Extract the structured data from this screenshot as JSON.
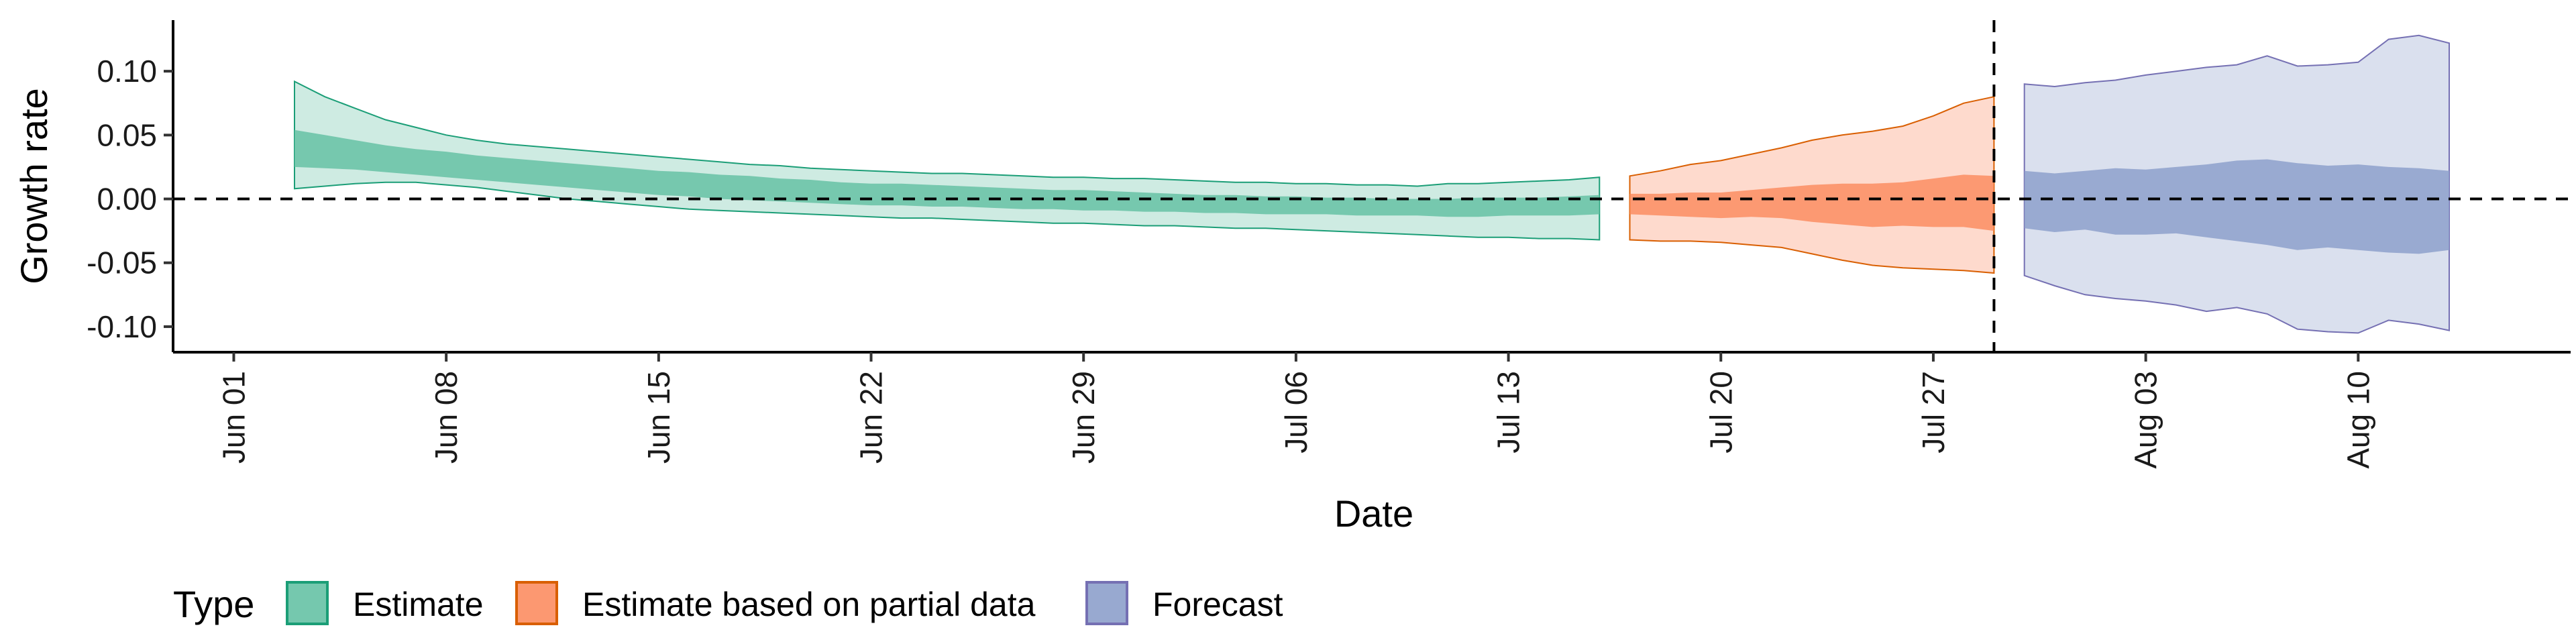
{
  "chart_data": {
    "type": "area",
    "xlabel": "Date",
    "ylabel": "Growth rate",
    "ylim": [
      -0.12,
      0.14
    ],
    "xlim": [
      "2020-05-30",
      "2020-08-17"
    ],
    "x_scale": "date",
    "y_ticks": [
      {
        "value": 0.1,
        "label": "0.10"
      },
      {
        "value": 0.05,
        "label": "0.05"
      },
      {
        "value": 0.0,
        "label": "0.00"
      },
      {
        "value": -0.05,
        "label": "-0.05"
      },
      {
        "value": -0.1,
        "label": "-0.10"
      }
    ],
    "x_ticks": [
      {
        "value": "2020-06-01",
        "label": "Jun 01"
      },
      {
        "value": "2020-06-08",
        "label": "Jun 08"
      },
      {
        "value": "2020-06-15",
        "label": "Jun 15"
      },
      {
        "value": "2020-06-22",
        "label": "Jun 22"
      },
      {
        "value": "2020-06-29",
        "label": "Jun 29"
      },
      {
        "value": "2020-07-06",
        "label": "Jul 06"
      },
      {
        "value": "2020-07-13",
        "label": "Jul 13"
      },
      {
        "value": "2020-07-20",
        "label": "Jul 20"
      },
      {
        "value": "2020-07-27",
        "label": "Jul 27"
      },
      {
        "value": "2020-08-03",
        "label": "Aug 03"
      },
      {
        "value": "2020-08-10",
        "label": "Aug 10"
      }
    ],
    "hline": {
      "y": 0,
      "style": "dashed"
    },
    "vline": {
      "x": "2020-07-29",
      "style": "dashed"
    },
    "grid": false,
    "legend": {
      "title": "Type",
      "position": "bottom-left",
      "items": [
        {
          "label": "Estimate",
          "fill": "#66c2a5",
          "stroke": "#1b9e77"
        },
        {
          "label": "Estimate based on partial data",
          "fill": "#fc8d62",
          "stroke": "#d95f02"
        },
        {
          "label": "Forecast",
          "fill": "#8da0cb",
          "stroke": "#7570b3"
        }
      ]
    },
    "series": [
      {
        "name": "Estimate",
        "fill": "#66c2a5",
        "stroke": "#1b9e77",
        "x": [
          "2020-06-03",
          "2020-06-04",
          "2020-06-05",
          "2020-06-06",
          "2020-06-07",
          "2020-06-08",
          "2020-06-09",
          "2020-06-10",
          "2020-06-11",
          "2020-06-12",
          "2020-06-13",
          "2020-06-14",
          "2020-06-15",
          "2020-06-16",
          "2020-06-17",
          "2020-06-18",
          "2020-06-19",
          "2020-06-20",
          "2020-06-21",
          "2020-06-22",
          "2020-06-23",
          "2020-06-24",
          "2020-06-25",
          "2020-06-26",
          "2020-06-27",
          "2020-06-28",
          "2020-06-29",
          "2020-06-30",
          "2020-07-01",
          "2020-07-02",
          "2020-07-03",
          "2020-07-04",
          "2020-07-05",
          "2020-07-06",
          "2020-07-07",
          "2020-07-08",
          "2020-07-09",
          "2020-07-10",
          "2020-07-11",
          "2020-07-12",
          "2020-07-13",
          "2020-07-14",
          "2020-07-15",
          "2020-07-16"
        ],
        "upper90": [
          0.092,
          0.08,
          0.071,
          0.062,
          0.056,
          0.05,
          0.046,
          0.043,
          0.041,
          0.039,
          0.037,
          0.035,
          0.033,
          0.031,
          0.029,
          0.027,
          0.026,
          0.024,
          0.023,
          0.022,
          0.021,
          0.02,
          0.02,
          0.019,
          0.018,
          0.017,
          0.017,
          0.016,
          0.016,
          0.015,
          0.014,
          0.013,
          0.013,
          0.012,
          0.012,
          0.011,
          0.011,
          0.01,
          0.012,
          0.012,
          0.013,
          0.014,
          0.015,
          0.017
        ],
        "upper50": [
          0.054,
          0.05,
          0.046,
          0.042,
          0.039,
          0.037,
          0.034,
          0.032,
          0.03,
          0.028,
          0.026,
          0.024,
          0.022,
          0.021,
          0.019,
          0.018,
          0.016,
          0.015,
          0.013,
          0.012,
          0.012,
          0.011,
          0.01,
          0.009,
          0.008,
          0.007,
          0.007,
          0.006,
          0.005,
          0.004,
          0.003,
          0.003,
          0.002,
          0.002,
          0.001,
          0.001,
          0.0,
          0.0,
          0.0,
          0.001,
          0.001,
          0.001,
          0.002,
          0.003
        ],
        "lower50": [
          0.025,
          0.024,
          0.023,
          0.021,
          0.019,
          0.017,
          0.015,
          0.013,
          0.011,
          0.009,
          0.007,
          0.005,
          0.003,
          0.002,
          0.0,
          -0.001,
          -0.002,
          -0.003,
          -0.004,
          -0.005,
          -0.005,
          -0.006,
          -0.006,
          -0.007,
          -0.008,
          -0.008,
          -0.009,
          -0.009,
          -0.01,
          -0.01,
          -0.011,
          -0.011,
          -0.012,
          -0.012,
          -0.012,
          -0.013,
          -0.013,
          -0.013,
          -0.014,
          -0.014,
          -0.013,
          -0.013,
          -0.013,
          -0.012
        ],
        "lower90": [
          0.008,
          0.01,
          0.012,
          0.013,
          0.013,
          0.011,
          0.009,
          0.006,
          0.003,
          0.0,
          -0.002,
          -0.004,
          -0.006,
          -0.008,
          -0.009,
          -0.01,
          -0.011,
          -0.012,
          -0.013,
          -0.014,
          -0.015,
          -0.015,
          -0.016,
          -0.017,
          -0.018,
          -0.019,
          -0.019,
          -0.02,
          -0.021,
          -0.021,
          -0.022,
          -0.023,
          -0.023,
          -0.024,
          -0.025,
          -0.026,
          -0.027,
          -0.028,
          -0.029,
          -0.03,
          -0.03,
          -0.031,
          -0.031,
          -0.032
        ]
      },
      {
        "name": "Estimate based on partial data",
        "fill": "#fc8d62",
        "stroke": "#d95f02",
        "x": [
          "2020-07-17",
          "2020-07-18",
          "2020-07-19",
          "2020-07-20",
          "2020-07-21",
          "2020-07-22",
          "2020-07-23",
          "2020-07-24",
          "2020-07-25",
          "2020-07-26",
          "2020-07-27",
          "2020-07-28",
          "2020-07-29"
        ],
        "upper90": [
          0.018,
          0.022,
          0.027,
          0.03,
          0.035,
          0.04,
          0.046,
          0.05,
          0.053,
          0.057,
          0.065,
          0.075,
          0.08
        ],
        "upper50": [
          0.004,
          0.004,
          0.005,
          0.005,
          0.007,
          0.009,
          0.011,
          0.012,
          0.012,
          0.013,
          0.016,
          0.019,
          0.018
        ],
        "lower50": [
          -0.012,
          -0.013,
          -0.014,
          -0.015,
          -0.014,
          -0.015,
          -0.018,
          -0.02,
          -0.022,
          -0.021,
          -0.022,
          -0.022,
          -0.025
        ],
        "lower90": [
          -0.032,
          -0.033,
          -0.033,
          -0.034,
          -0.036,
          -0.038,
          -0.043,
          -0.048,
          -0.052,
          -0.054,
          -0.055,
          -0.056,
          -0.058
        ]
      },
      {
        "name": "Forecast",
        "fill": "#8da0cb",
        "stroke": "#7570b3",
        "x": [
          "2020-07-30",
          "2020-07-31",
          "2020-08-01",
          "2020-08-02",
          "2020-08-03",
          "2020-08-04",
          "2020-08-05",
          "2020-08-06",
          "2020-08-07",
          "2020-08-08",
          "2020-08-09",
          "2020-08-10",
          "2020-08-11",
          "2020-08-12",
          "2020-08-13"
        ],
        "upper90": [
          0.09,
          0.088,
          0.091,
          0.093,
          0.097,
          0.1,
          0.103,
          0.105,
          0.112,
          0.104,
          0.105,
          0.107,
          0.125,
          0.128,
          0.122
        ],
        "upper50": [
          0.022,
          0.02,
          0.022,
          0.024,
          0.023,
          0.025,
          0.027,
          0.03,
          0.031,
          0.028,
          0.026,
          0.027,
          0.025,
          0.024,
          0.022
        ],
        "lower50": [
          -0.023,
          -0.026,
          -0.024,
          -0.028,
          -0.028,
          -0.027,
          -0.03,
          -0.033,
          -0.036,
          -0.04,
          -0.038,
          -0.04,
          -0.042,
          -0.043,
          -0.04
        ],
        "lower90": [
          -0.06,
          -0.068,
          -0.075,
          -0.078,
          -0.08,
          -0.083,
          -0.088,
          -0.085,
          -0.09,
          -0.102,
          -0.104,
          -0.105,
          -0.095,
          -0.098,
          -0.103
        ]
      }
    ]
  }
}
